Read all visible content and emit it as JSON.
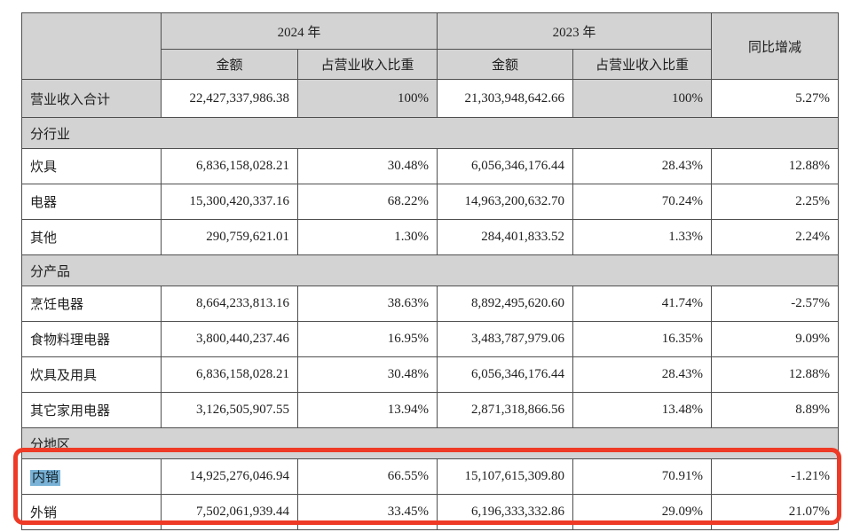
{
  "colors": {
    "header_bg": "#d3d3d3",
    "border": "#4f4f4f",
    "text": "#1e1e1e",
    "annotation_red": "#ee3a26",
    "selection_blue": "#79b2d6"
  },
  "table": {
    "header": {
      "col_group_2024": "2024 年",
      "col_group_2023": "2023 年",
      "col_amount_2024": "金额",
      "col_ratio_2024": "占营业收入比重",
      "col_amount_2023": "金额",
      "col_ratio_2023": "占营业收入比重",
      "col_yoy": "同比增减"
    },
    "rows": [
      {
        "kind": "total",
        "label": "营业收入合计",
        "amount_2024": "22,427,337,986.38",
        "ratio_2024": "100%",
        "amount_2023": "21,303,948,642.66",
        "ratio_2023": "100%",
        "yoy": "5.27%"
      },
      {
        "kind": "section",
        "label": "分行业"
      },
      {
        "kind": "data",
        "label": "炊具",
        "amount_2024": "6,836,158,028.21",
        "ratio_2024": "30.48%",
        "amount_2023": "6,056,346,176.44",
        "ratio_2023": "28.43%",
        "yoy": "12.88%"
      },
      {
        "kind": "data",
        "label": "电器",
        "amount_2024": "15,300,420,337.16",
        "ratio_2024": "68.22%",
        "amount_2023": "14,963,200,632.70",
        "ratio_2023": "70.24%",
        "yoy": "2.25%"
      },
      {
        "kind": "data",
        "label": "其他",
        "amount_2024": "290,759,621.01",
        "ratio_2024": "1.30%",
        "amount_2023": "284,401,833.52",
        "ratio_2023": "1.33%",
        "yoy": "2.24%"
      },
      {
        "kind": "section",
        "label": "分产品"
      },
      {
        "kind": "data",
        "label": "烹饪电器",
        "amount_2024": "8,664,233,813.16",
        "ratio_2024": "38.63%",
        "amount_2023": "8,892,495,620.60",
        "ratio_2023": "41.74%",
        "yoy": "-2.57%"
      },
      {
        "kind": "data",
        "label": "食物料理电器",
        "amount_2024": "3,800,440,237.46",
        "ratio_2024": "16.95%",
        "amount_2023": "3,483,787,979.06",
        "ratio_2023": "16.35%",
        "yoy": "9.09%"
      },
      {
        "kind": "data",
        "label": "炊具及用具",
        "amount_2024": "6,836,158,028.21",
        "ratio_2024": "30.48%",
        "amount_2023": "6,056,346,176.44",
        "ratio_2023": "28.43%",
        "yoy": "12.88%"
      },
      {
        "kind": "data",
        "label": "其它家用电器",
        "amount_2024": "3,126,505,907.55",
        "ratio_2024": "13.94%",
        "amount_2023": "2,871,318,866.56",
        "ratio_2023": "13.48%",
        "yoy": "8.89%"
      },
      {
        "kind": "section",
        "label": "分地区"
      },
      {
        "kind": "data",
        "selected": true,
        "label": "内销",
        "amount_2024": "14,925,276,046.94",
        "ratio_2024": "66.55%",
        "amount_2023": "15,107,615,309.80",
        "ratio_2023": "70.91%",
        "yoy": "-1.21%"
      },
      {
        "kind": "data",
        "label": "外销",
        "amount_2024": "7,502,061,939.44",
        "ratio_2024": "33.45%",
        "amount_2023": "6,196,333,332.86",
        "ratio_2023": "29.09%",
        "yoy": "21.07%"
      }
    ]
  },
  "annotation": {
    "type": "red-outline-box",
    "color": "#ee3a26",
    "highlighted_rows": [
      "内销",
      "外销"
    ],
    "selected_text": "内销"
  }
}
